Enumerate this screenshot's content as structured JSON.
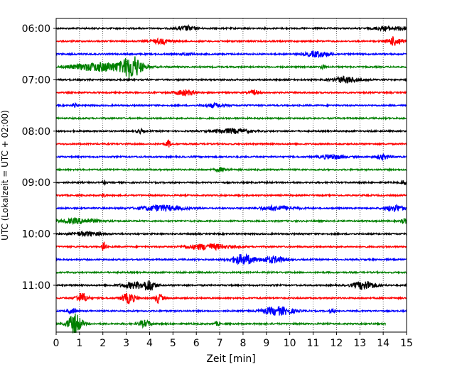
{
  "chart_data": {
    "type": "line",
    "xlabel": "Zeit  [min]",
    "ylabel": "UTC (Lokalzeit = UTC + 02:00)",
    "xlim": [
      0,
      15
    ],
    "x_ticks": [
      0,
      1,
      2,
      3,
      4,
      5,
      6,
      7,
      8,
      9,
      10,
      11,
      12,
      13,
      14,
      15
    ],
    "x_tick_labels": [
      "0",
      "1",
      "2",
      "3",
      "4",
      "5",
      "6",
      "7",
      "8",
      "9",
      "10",
      "11",
      "12",
      "13",
      "14",
      "15"
    ],
    "y_tick_labels": [
      "06:00",
      "07:00",
      "08:00",
      "09:00",
      "10:00",
      "11:00"
    ],
    "y_tick_rows": [
      0,
      4,
      8,
      12,
      16,
      20
    ],
    "row_minutes": 15,
    "colors": [
      "#000000",
      "#ff0000",
      "#0000ff",
      "#008000"
    ],
    "grid": "vertical dotted lines at every minute",
    "series": [
      {
        "start_time": "06:00",
        "color": "#000000",
        "events": [
          {
            "t": 5.6,
            "amp": 0.35,
            "dur": 0.8
          },
          {
            "t": 14.1,
            "amp": 0.3,
            "dur": 0.9
          },
          {
            "t": 14.8,
            "amp": 0.4,
            "dur": 0.3
          }
        ]
      },
      {
        "start_time": "06:15",
        "color": "#ff0000",
        "events": [
          {
            "t": 4.5,
            "amp": 0.35,
            "dur": 0.9
          },
          {
            "t": 14.5,
            "amp": 0.7,
            "dur": 0.6
          }
        ]
      },
      {
        "start_time": "06:30",
        "color": "#0000ff",
        "events": [
          {
            "t": 11.2,
            "amp": 0.45,
            "dur": 1.0
          },
          {
            "t": 5.6,
            "amp": 0.2,
            "dur": 0.5
          }
        ]
      },
      {
        "start_time": "06:45",
        "color": "#008000",
        "events": [
          {
            "t": 2.0,
            "amp": 0.7,
            "dur": 2.5
          },
          {
            "t": 3.25,
            "amp": 1.6,
            "dur": 0.8
          },
          {
            "t": 11.4,
            "amp": 0.3,
            "dur": 0.2
          }
        ]
      },
      {
        "start_time": "07:00",
        "color": "#000000",
        "events": [
          {
            "t": 12.4,
            "amp": 0.5,
            "dur": 1.0
          }
        ]
      },
      {
        "start_time": "07:15",
        "color": "#ff0000",
        "events": [
          {
            "t": 5.5,
            "amp": 0.45,
            "dur": 0.8
          },
          {
            "t": 8.5,
            "amp": 0.35,
            "dur": 0.4
          }
        ]
      },
      {
        "start_time": "07:30",
        "color": "#0000ff",
        "events": [
          {
            "t": 0.8,
            "amp": 0.4,
            "dur": 0.2
          },
          {
            "t": 6.8,
            "amp": 0.3,
            "dur": 0.9
          }
        ]
      },
      {
        "start_time": "07:45",
        "color": "#008000",
        "events": []
      },
      {
        "start_time": "08:00",
        "color": "#000000",
        "events": [
          {
            "t": 3.6,
            "amp": 0.3,
            "dur": 0.3
          },
          {
            "t": 7.5,
            "amp": 0.35,
            "dur": 1.5
          }
        ]
      },
      {
        "start_time": "08:15",
        "color": "#ff0000",
        "events": [
          {
            "t": 4.8,
            "amp": 0.6,
            "dur": 0.2
          }
        ]
      },
      {
        "start_time": "08:30",
        "color": "#0000ff",
        "events": [
          {
            "t": 11.8,
            "amp": 0.35,
            "dur": 1.0
          },
          {
            "t": 14.0,
            "amp": 0.4,
            "dur": 0.6
          }
        ]
      },
      {
        "start_time": "08:45",
        "color": "#008000",
        "events": [
          {
            "t": 7.1,
            "amp": 0.3,
            "dur": 0.5
          }
        ]
      },
      {
        "start_time": "09:00",
        "color": "#000000",
        "events": [
          {
            "t": 2.05,
            "amp": 0.5,
            "dur": 0.1
          },
          {
            "t": 14.9,
            "amp": 0.4,
            "dur": 0.2
          }
        ]
      },
      {
        "start_time": "09:15",
        "color": "#ff0000",
        "events": [
          {
            "t": 2.05,
            "amp": 0.5,
            "dur": 0.1
          }
        ]
      },
      {
        "start_time": "09:30",
        "color": "#0000ff",
        "events": [
          {
            "t": 4.5,
            "amp": 0.45,
            "dur": 1.8
          },
          {
            "t": 9.5,
            "amp": 0.35,
            "dur": 1.5
          },
          {
            "t": 14.5,
            "amp": 0.5,
            "dur": 0.8
          }
        ]
      },
      {
        "start_time": "09:45",
        "color": "#008000",
        "events": [
          {
            "t": 1.0,
            "amp": 0.4,
            "dur": 1.6
          },
          {
            "t": 14.9,
            "amp": 0.5,
            "dur": 0.2
          }
        ]
      },
      {
        "start_time": "10:00",
        "color": "#000000",
        "events": [
          {
            "t": 1.3,
            "amp": 0.35,
            "dur": 1.2
          }
        ]
      },
      {
        "start_time": "10:15",
        "color": "#ff0000",
        "events": [
          {
            "t": 2.05,
            "amp": 1.0,
            "dur": 0.15
          },
          {
            "t": 6.5,
            "amp": 0.45,
            "dur": 1.8
          }
        ]
      },
      {
        "start_time": "10:30",
        "color": "#0000ff",
        "events": [
          {
            "t": 8.0,
            "amp": 0.8,
            "dur": 1.0
          },
          {
            "t": 9.3,
            "amp": 0.5,
            "dur": 1.0
          }
        ]
      },
      {
        "start_time": "10:45",
        "color": "#008000",
        "events": []
      },
      {
        "start_time": "11:00",
        "color": "#000000",
        "events": [
          {
            "t": 3.4,
            "amp": 0.5,
            "dur": 1.2
          },
          {
            "t": 4.0,
            "amp": 0.7,
            "dur": 0.5
          },
          {
            "t": 13.2,
            "amp": 0.65,
            "dur": 1.0
          }
        ]
      },
      {
        "start_time": "11:15",
        "color": "#ff0000",
        "events": [
          {
            "t": 1.1,
            "amp": 0.8,
            "dur": 0.5
          },
          {
            "t": 3.1,
            "amp": 0.8,
            "dur": 0.6
          },
          {
            "t": 4.4,
            "amp": 0.8,
            "dur": 0.3
          }
        ]
      },
      {
        "start_time": "11:30",
        "color": "#0000ff",
        "events": [
          {
            "t": 9.5,
            "amp": 0.65,
            "dur": 1.3
          },
          {
            "t": 0.7,
            "amp": 0.35,
            "dur": 0.4
          },
          {
            "t": 11.8,
            "amp": 0.3,
            "dur": 0.2
          }
        ]
      },
      {
        "start_time": "11:45",
        "color": "#008000",
        "end_minute": 14.1,
        "events": [
          {
            "t": 0.8,
            "amp": 1.6,
            "dur": 0.6
          },
          {
            "t": 3.8,
            "amp": 0.5,
            "dur": 0.5
          },
          {
            "t": 6.9,
            "amp": 0.3,
            "dur": 0.2
          }
        ]
      }
    ]
  }
}
